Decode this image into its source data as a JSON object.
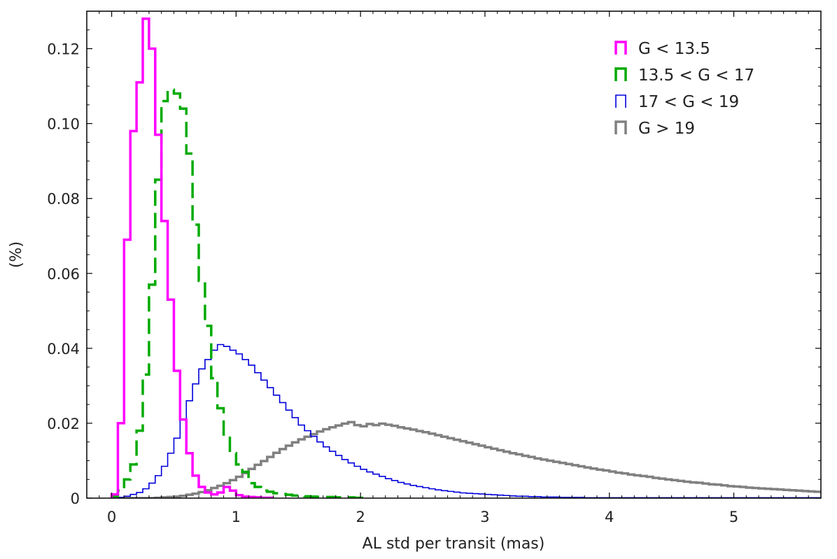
{
  "chart_data": {
    "type": "histogram-step",
    "xlabel": "AL std per transit (mas)",
    "ylabel": "(%)",
    "xlim": [
      -0.2,
      5.7
    ],
    "ylim": [
      0,
      0.13
    ],
    "xticks": [
      0,
      1,
      2,
      3,
      4,
      5
    ],
    "xtick_labels": [
      "0",
      "1",
      "2",
      "3",
      "4",
      "5"
    ],
    "yticks": [
      0,
      0.02,
      0.04,
      0.06,
      0.08,
      0.1,
      0.12
    ],
    "ytick_labels": [
      "0",
      "0.02",
      "0.04",
      "0.06",
      "0.08",
      "0.10",
      "0.12"
    ],
    "grid": false,
    "legend_position": "top-right",
    "bin_width": 0.05,
    "series": [
      {
        "name": "G < 13.5",
        "color": "#ff00ff",
        "style": "solid",
        "x_start": 0.0,
        "values": [
          0.001,
          0.02,
          0.069,
          0.098,
          0.111,
          0.128,
          0.12,
          0.097,
          0.074,
          0.053,
          0.034,
          0.021,
          0.012,
          0.006,
          0.003,
          0.0015,
          0.001,
          0.0015,
          0.003,
          0.002,
          0.0008,
          0.0004,
          0.0003,
          0.0002,
          0.0001,
          0.0001
        ]
      },
      {
        "name": "13.5 < G < 17",
        "color": "#00aa00",
        "style": "dashed",
        "x_start": 0.0,
        "values": [
          0.0005,
          0.002,
          0.005,
          0.009,
          0.018,
          0.033,
          0.057,
          0.085,
          0.106,
          0.109,
          0.108,
          0.104,
          0.092,
          0.073,
          0.058,
          0.046,
          0.032,
          0.024,
          0.017,
          0.012,
          0.009,
          0.007,
          0.004,
          0.003,
          0.002,
          0.0017,
          0.0013,
          0.0011,
          0.0009,
          0.0007,
          0.0006,
          0.0005,
          0.0004,
          0.0003,
          0.0003,
          0.0003,
          0.0002,
          0.0002,
          0.0002,
          0.0001,
          0.0001
        ]
      },
      {
        "name": "17 < G < 19",
        "color": "#0000dd",
        "style": "solid",
        "x_start": 0.0,
        "values": [
          0,
          0.0002,
          0.0005,
          0.001,
          0.0015,
          0.0025,
          0.004,
          0.006,
          0.0085,
          0.012,
          0.016,
          0.021,
          0.026,
          0.0305,
          0.0345,
          0.037,
          0.0395,
          0.041,
          0.0405,
          0.0395,
          0.0385,
          0.037,
          0.0355,
          0.0335,
          0.0315,
          0.0295,
          0.0275,
          0.0255,
          0.0235,
          0.0215,
          0.0195,
          0.018,
          0.0165,
          0.015,
          0.0137,
          0.0125,
          0.0114,
          0.0103,
          0.0094,
          0.0085,
          0.0077,
          0.007,
          0.0064,
          0.0058,
          0.0052,
          0.0047,
          0.0042,
          0.0038,
          0.0034,
          0.0031,
          0.0028,
          0.0025,
          0.0022,
          0.002,
          0.0018,
          0.0016,
          0.0014,
          0.0013,
          0.0012,
          0.0011,
          0.001,
          0.0009,
          0.0008,
          0.0007,
          0.0006,
          0.0005,
          0.0005,
          0.0004,
          0.0004,
          0.0003,
          0.0003,
          0.0003,
          0.0002,
          0.0002,
          0.0002,
          0.0002,
          0.0001,
          0.0001,
          0.0001,
          0.0001,
          0.0001,
          0.0001,
          0.0001,
          0.0001,
          0.0001,
          0.0001,
          0.0001,
          0.0001,
          0.0001,
          0.0001,
          0.0001,
          0.0001,
          0.0001,
          0.0001,
          0.0001,
          0.0001,
          0.0001,
          0.0001,
          0.0001,
          0.0001,
          0.0001,
          0.0001,
          0.0001,
          0.0001,
          0.0001,
          0.0001,
          0.0001,
          0.0001,
          0.0001,
          0.0001,
          0.0001,
          0.0001,
          0.0001,
          0.0001
        ]
      },
      {
        "name": "G > 19",
        "color": "#808080",
        "style": "solid",
        "x_start": 0.0,
        "values": [
          0,
          0,
          0,
          0,
          0,
          0,
          0,
          0.0001,
          0.0002,
          0.0003,
          0.0004,
          0.0006,
          0.0009,
          0.0012,
          0.0016,
          0.0021,
          0.0027,
          0.0033,
          0.004,
          0.0048,
          0.0057,
          0.0067,
          0.0078,
          0.0089,
          0.0099,
          0.011,
          0.0121,
          0.0131,
          0.014,
          0.0149,
          0.0157,
          0.0164,
          0.0171,
          0.0178,
          0.0184,
          0.0189,
          0.0194,
          0.0199,
          0.0203,
          0.0195,
          0.0192,
          0.0198,
          0.0195,
          0.0199,
          0.0196,
          0.0193,
          0.0189,
          0.0186,
          0.0183,
          0.0179,
          0.0176,
          0.0172,
          0.0168,
          0.0164,
          0.016,
          0.0156,
          0.0152,
          0.0148,
          0.0144,
          0.014,
          0.0136,
          0.0132,
          0.0128,
          0.0124,
          0.012,
          0.0117,
          0.0113,
          0.011,
          0.0106,
          0.0103,
          0.01,
          0.0097,
          0.0094,
          0.0091,
          0.0088,
          0.0085,
          0.0082,
          0.0079,
          0.0076,
          0.0074,
          0.0071,
          0.0068,
          0.0066,
          0.0063,
          0.0061,
          0.0059,
          0.0057,
          0.0054,
          0.0052,
          0.005,
          0.0048,
          0.0046,
          0.0044,
          0.0042,
          0.0041,
          0.0039,
          0.0037,
          0.0036,
          0.0034,
          0.0032,
          0.0031,
          0.003,
          0.0028,
          0.0027,
          0.0026,
          0.0025,
          0.0024,
          0.0023,
          0.0022,
          0.0021,
          0.002,
          0.0019,
          0.0018,
          0.0017,
          0.0016
        ]
      }
    ]
  }
}
